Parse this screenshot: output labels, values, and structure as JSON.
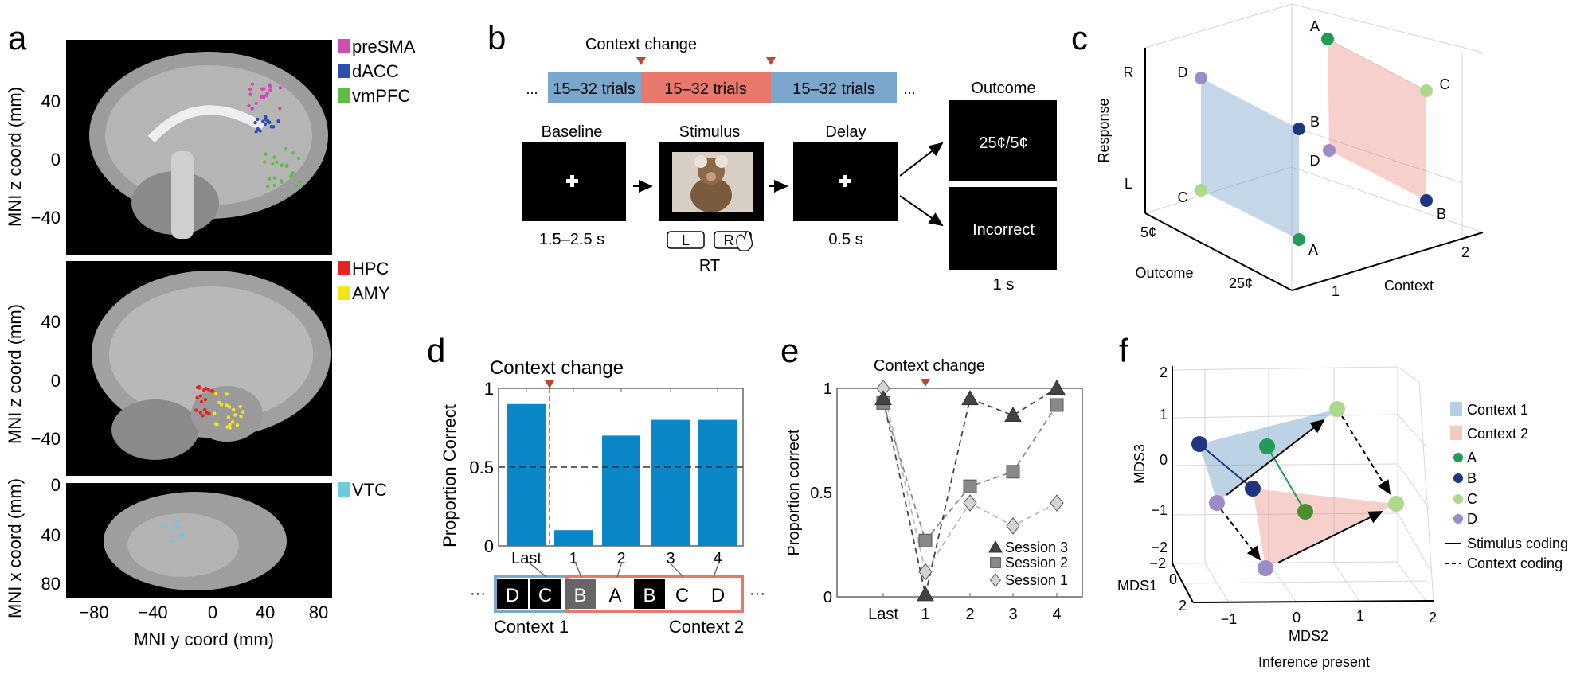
{
  "panel_labels": {
    "a": "a",
    "b": "b",
    "c": "c",
    "d": "d",
    "e": "e",
    "f": "f"
  },
  "colors": {
    "context1": "#7ba7cc",
    "context2": "#e8776c",
    "bar": "#0a87c8",
    "marker_red": "#c0462b",
    "A": "#239b56",
    "B": "#1f3582",
    "C": "#acd98a",
    "D": "#9b8bc6"
  },
  "panel_a": {
    "legend": [
      {
        "label": "preSMA",
        "color": "#cc4fb0"
      },
      {
        "label": "dACC",
        "color": "#2f4fb0"
      },
      {
        "label": "vmPFC",
        "color": "#62bb46"
      },
      {
        "label": "HPC",
        "color": "#e8221f"
      },
      {
        "label": "AMY",
        "color": "#f3e51b"
      },
      {
        "label": "VTC",
        "color": "#6bcbdb"
      }
    ],
    "ylabel_z": "MNI z coord (mm)",
    "ylabel_x": "MNI x coord (mm)",
    "xlabel": "MNI y coord (mm)",
    "yticks_z": [
      "40",
      "0",
      "−40"
    ],
    "yticks_x": [
      "0",
      "40",
      "80"
    ],
    "xticks": [
      "−80",
      "−40",
      "0",
      "40",
      "80"
    ]
  },
  "panel_b": {
    "context_change": "Context change",
    "ellipsis": "...",
    "blocks": [
      "15–32 trials",
      "15–32 trials",
      "15–32 trials"
    ],
    "screens": [
      {
        "label": "Baseline",
        "duration": "1.5–2.5 s"
      },
      {
        "label": "Stimulus",
        "duration": "RT"
      },
      {
        "label": "Delay",
        "duration": "0.5 s"
      }
    ],
    "buttons": [
      "L",
      "R"
    ],
    "outcome_label": "Outcome",
    "outcome_correct": "25¢/5¢",
    "outcome_incorrect": "Incorrect",
    "outcome_duration": "1 s"
  },
  "panel_c": {
    "axis_response": "Response",
    "axis_outcome": "Outcome",
    "axis_context": "Context",
    "response_ticks": [
      "R",
      "L"
    ],
    "outcome_ticks": [
      "5¢",
      "25¢"
    ],
    "context_ticks": [
      "1",
      "2"
    ],
    "points": [
      "A",
      "D",
      "C",
      "B",
      "D",
      "C",
      "B",
      "A"
    ]
  },
  "chart_data": [
    {
      "panel": "d",
      "type": "bar",
      "title": "Context change",
      "ylabel": "Proportion Correct",
      "categories": [
        "Last",
        "1",
        "2",
        "3",
        "4"
      ],
      "values": [
        0.9,
        0.1,
        0.7,
        0.8,
        0.8
      ],
      "ylim": [
        0,
        1
      ],
      "yticks": [
        "0",
        "0.5",
        "1"
      ],
      "chance_line": 0.5,
      "context_change_between": [
        "Last",
        "1"
      ],
      "sequence": {
        "items": [
          "D",
          "C",
          "B",
          "A",
          "B",
          "C",
          "D"
        ],
        "context1_label": "Context 1",
        "context2_label": "Context 2",
        "ellipsis": "···"
      }
    },
    {
      "panel": "e",
      "type": "line",
      "title": "Context change",
      "ylabel": "Proportion correct",
      "categories": [
        "Last",
        "1",
        "2",
        "3",
        "4"
      ],
      "ylim": [
        0,
        1
      ],
      "yticks": [
        "0",
        "0.5",
        "1"
      ],
      "series": [
        {
          "name": "Session 3",
          "marker": "triangle",
          "values": [
            0.95,
            0.01,
            0.95,
            0.87,
            1.0
          ]
        },
        {
          "name": "Session 2",
          "marker": "square",
          "values": [
            0.93,
            0.27,
            0.53,
            0.6,
            0.92
          ]
        },
        {
          "name": "Session 1",
          "marker": "diamond",
          "values": [
            1.0,
            0.12,
            0.45,
            0.34,
            0.45
          ]
        }
      ]
    },
    {
      "panel": "f",
      "type": "scatter",
      "title": "Inference present",
      "xlabel": "MDS2",
      "ylabel": "MDS3",
      "zlabel": "MDS1",
      "mds3_ticks": [
        "2",
        "1",
        "0",
        "−1",
        "−2"
      ],
      "mds1_ticks": [
        "−2",
        "0",
        "2"
      ],
      "mds2_ticks": [
        "−1",
        "0",
        "1",
        "2"
      ],
      "legend": [
        "Context 1",
        "Context 2",
        "A",
        "B",
        "C",
        "D",
        "Stimulus coding",
        "Context coding"
      ]
    }
  ]
}
